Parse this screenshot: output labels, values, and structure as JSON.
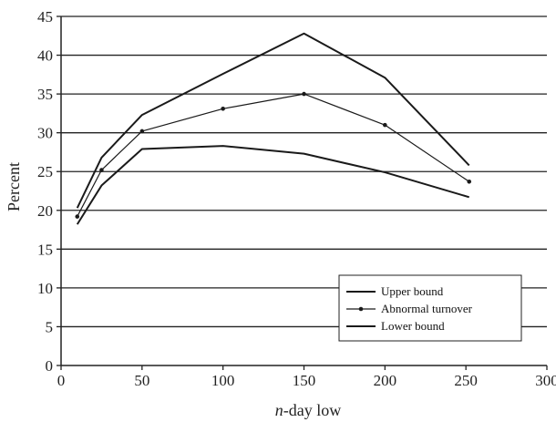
{
  "chart_data": {
    "type": "line",
    "title": "",
    "xlabel_italic": "n",
    "xlabel_rest": "-day low",
    "ylabel": "Percent",
    "xlim": [
      0,
      300
    ],
    "ylim": [
      0,
      45
    ],
    "x_ticks": [
      0,
      50,
      100,
      150,
      200,
      250,
      300
    ],
    "y_ticks": [
      0,
      5,
      10,
      15,
      20,
      25,
      30,
      35,
      40,
      45
    ],
    "grid": "horizontal",
    "legend_position": "bottom-right",
    "x": [
      10,
      25,
      50,
      100,
      150,
      200,
      252
    ],
    "series": [
      {
        "name": "Upper bound",
        "values": [
          20.3,
          26.8,
          32.3,
          37.6,
          42.8,
          37.1,
          25.8
        ],
        "markers": false,
        "color": "#1a1a1a"
      },
      {
        "name": "Abnormal turnover",
        "values": [
          19.2,
          25.2,
          30.2,
          33.1,
          35.0,
          31.0,
          23.7
        ],
        "markers": true,
        "color": "#1a1a1a"
      },
      {
        "name": "Lower bound",
        "values": [
          18.2,
          23.2,
          27.9,
          28.3,
          27.3,
          24.9,
          21.7
        ],
        "markers": false,
        "color": "#1a1a1a"
      }
    ]
  }
}
